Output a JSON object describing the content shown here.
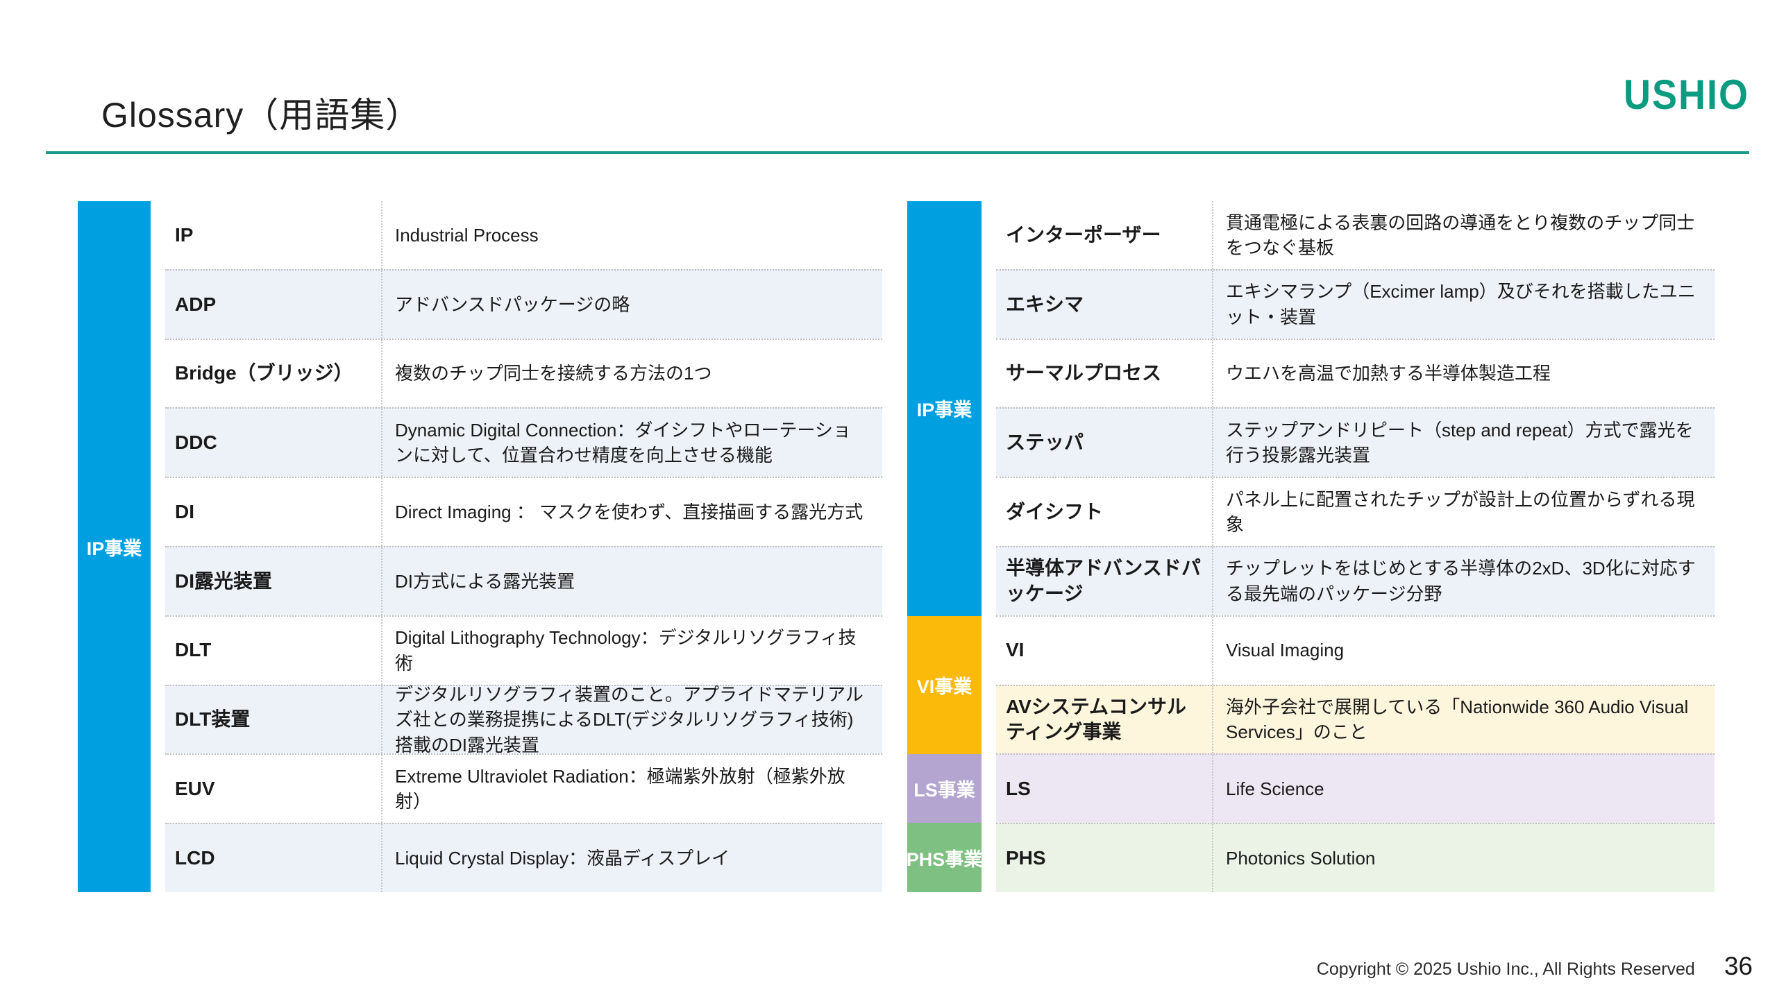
{
  "page": {
    "title": "Glossary（用語集）",
    "logo": "USHIO",
    "footer": {
      "copyright": "Copyright © 2025 Ushio Inc., All Rights Reserved",
      "page_number": "36"
    }
  },
  "colors": {
    "accent_teal_rule": "#199C8B",
    "logo_green": "#0B9B80",
    "ip_blue": "#00A0E0",
    "vi_amber": "#FBB90A",
    "ls_purple": "#B4A4D0",
    "phs_green": "#7EC081",
    "row_shade_blue": "#EDF1F8",
    "row_shade_cream": "#FDF5DC",
    "row_shade_purple": "#ECE7F2",
    "row_shade_green": "#EAF3E6"
  },
  "left_table": {
    "sidebar": {
      "id": "ip",
      "label": "IP事業",
      "color": "#00A0E0"
    },
    "rows": [
      {
        "term": "IP",
        "definition": "Industrial Process",
        "bg": "white"
      },
      {
        "term": "ADP",
        "definition": "アドバンスドパッケージの略",
        "bg": "blue"
      },
      {
        "term": "Bridge（ブリッジ）",
        "definition": "複数のチップ同士を接続する方法の1つ",
        "bg": "white"
      },
      {
        "term": "DDC",
        "definition": "Dynamic Digital Connection：ダイシフトやローテーションに対して、位置合わせ精度を向上させる機能",
        "bg": "blue"
      },
      {
        "term": "DI",
        "definition": "Direct Imaging ： マスクを使わず、直接描画する露光方式",
        "bg": "white"
      },
      {
        "term": "DI露光装置",
        "definition": "DI方式による露光装置",
        "bg": "blue"
      },
      {
        "term": "DLT",
        "definition": "Digital Lithography Technology：デジタルリソグラフィ技術",
        "bg": "white"
      },
      {
        "term": "DLT装置",
        "definition": "デジタルリソグラフィ装置のこと。アプライドマテリアルズ社との業務提携によるDLT(デジタルリソグラフィ技術)搭載のDI露光装置",
        "bg": "blue"
      },
      {
        "term": "EUV",
        "definition": "Extreme Ultraviolet Radiation：極端紫外放射（極紫外放射）",
        "bg": "white"
      },
      {
        "term": "LCD",
        "definition": "Liquid Crystal Display：液晶ディスプレイ",
        "bg": "blue"
      }
    ]
  },
  "right_table": {
    "sidebar_segments": [
      {
        "id": "ip",
        "label": "IP事業",
        "color": "#00A0E0",
        "row_span": 6
      },
      {
        "id": "vi",
        "label": "VI事業",
        "color": "#FBB90A",
        "row_span": 2
      },
      {
        "id": "ls",
        "label": "LS事業",
        "color": "#B4A4D0",
        "row_span": 1
      },
      {
        "id": "phs",
        "label": "PHS事業",
        "color": "#7EC081",
        "row_span": 1
      }
    ],
    "rows": [
      {
        "term": "インターポーザー",
        "definition": "貫通電極による表裏の回路の導通をとり複数のチップ同士をつなぐ基板",
        "bg": "white"
      },
      {
        "term": "エキシマ",
        "definition": "エキシマランプ（Excimer lamp）及びそれを搭載したユニット・装置",
        "bg": "blue"
      },
      {
        "term": "サーマルプロセス",
        "definition": "ウエハを高温で加熱する半導体製造工程",
        "bg": "white"
      },
      {
        "term": "ステッパ",
        "definition": "ステップアンドリピート（step and repeat）方式で露光を行う投影露光装置",
        "bg": "blue"
      },
      {
        "term": "ダイシフト",
        "definition": "パネル上に配置されたチップが設計上の位置からずれる現象",
        "bg": "white"
      },
      {
        "term": "半導体アドバンスドパッケージ",
        "definition": "チップレットをはじめとする半導体の2xD、3D化に対応する最先端のパッケージ分野",
        "bg": "blue"
      },
      {
        "term": "VI",
        "definition": "Visual Imaging",
        "bg": "white"
      },
      {
        "term": "AVシステムコンサルティング事業",
        "definition": "海外子会社で展開している「Nationwide 360 Audio Visual Services」のこと",
        "bg": "cream"
      },
      {
        "term": "LS",
        "definition": "Life Science",
        "bg": "purple"
      },
      {
        "term": "PHS",
        "definition": "Photonics Solution",
        "bg": "green"
      }
    ]
  }
}
